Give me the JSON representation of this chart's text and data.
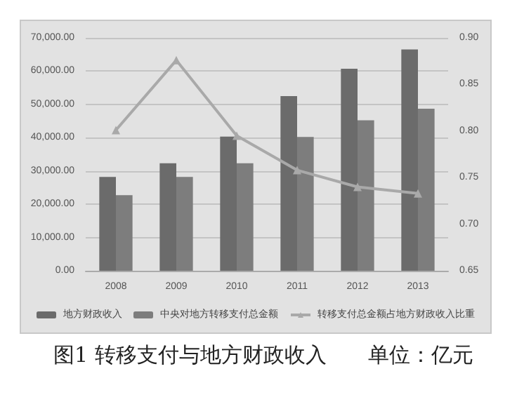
{
  "chart_data": {
    "type": "bar",
    "title": "图1 转移支付与地方财政收入",
    "annotations": [
      "单位：亿元"
    ],
    "categories": [
      "2008",
      "2009",
      "2010",
      "2011",
      "2012",
      "2013"
    ],
    "series": [
      {
        "name": "地方财政收入",
        "color": "#6b6b6b",
        "values": [
          28200,
          32300,
          40300,
          52500,
          60700,
          66500
        ]
      },
      {
        "name": "中央对地方转移支付总金额",
        "color": "#7d7d7d",
        "values": [
          22700,
          28200,
          32300,
          40200,
          45200,
          48700
        ]
      },
      {
        "name": "转移支付总金额占地方财政收入比重",
        "type": "line",
        "axis": "y2",
        "color": "#a9a9a9",
        "marker": "triangle",
        "values": [
          0.801,
          0.876,
          0.795,
          0.758,
          0.74,
          0.733
        ]
      }
    ],
    "ylim": [
      0,
      70000
    ],
    "yticks": [
      {
        "value": 0,
        "label": "0.00"
      },
      {
        "value": 10000,
        "label": "10,000.00"
      },
      {
        "value": 20000,
        "label": "20,000.00"
      },
      {
        "value": 30000,
        "label": "30,000.00"
      },
      {
        "value": 40000,
        "label": "40,000.00"
      },
      {
        "value": 50000,
        "label": "50,000.00"
      },
      {
        "value": 60000,
        "label": "60,000.00"
      },
      {
        "value": 70000,
        "label": "70,000.00"
      }
    ],
    "y2lim": [
      0.65,
      0.9
    ],
    "y2ticks": [
      {
        "value": 0.65,
        "label": "0.65"
      },
      {
        "value": 0.7,
        "label": "0.70"
      },
      {
        "value": 0.75,
        "label": "0.75"
      },
      {
        "value": 0.8,
        "label": "0.80"
      },
      {
        "value": 0.85,
        "label": "0.85"
      },
      {
        "value": 0.9,
        "label": "0.90"
      }
    ],
    "grid": "y",
    "legend": "bottom"
  }
}
